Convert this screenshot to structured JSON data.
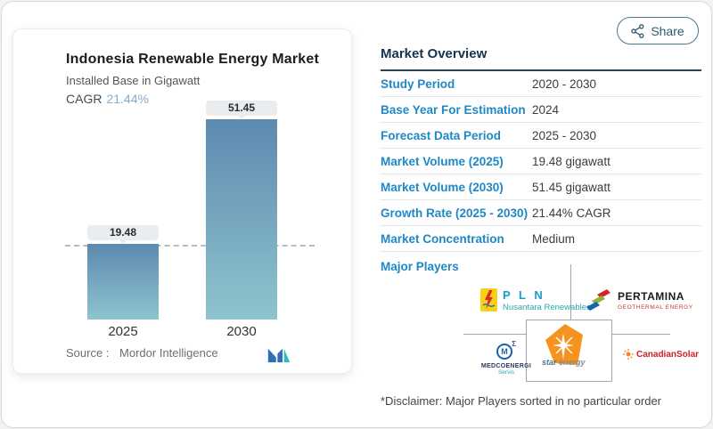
{
  "share": {
    "label": "Share"
  },
  "chart_card": {
    "title": "Indonesia Renewable Energy Market",
    "subtitle": "Installed Base in Gigawatt",
    "cagr_label": "CAGR",
    "cagr_value": "21.44%",
    "source_label": "Source :",
    "source_value": "Mordor Intelligence"
  },
  "chart_data": {
    "type": "bar",
    "title": "Indonesia Renewable Energy Market",
    "subtitle": "Installed Base in Gigawatt",
    "categories": [
      "2025",
      "2030"
    ],
    "values": [
      19.48,
      51.45
    ],
    "cagr": "21.44%",
    "ylabel": "Gigawatt",
    "ylim": [
      0,
      52
    ],
    "reference_line": 19.48,
    "bar_gradient_top": "#5c8ab0",
    "bar_gradient_bottom": "#8dc5ce",
    "grid": false,
    "legend": "none"
  },
  "overview": {
    "heading": "Market Overview",
    "rows": [
      {
        "label": "Study Period",
        "value": "2020 - 2030"
      },
      {
        "label": "Base Year For Estimation",
        "value": "2024"
      },
      {
        "label": "Forecast Data Period",
        "value": "2025 - 2030"
      },
      {
        "label": "Market Volume (2025)",
        "value": "19.48 gigawatt"
      },
      {
        "label": "Market Volume (2030)",
        "value": "51.45 gigawatt"
      },
      {
        "label": "Growth Rate (2025 - 2030)",
        "value": "21.44% CAGR"
      },
      {
        "label": "Market Concentration",
        "value": "Medium"
      }
    ],
    "major_players_label": "Major Players",
    "players": [
      {
        "name": "PLN Nusantara Renewables",
        "line1": "P L N",
        "line2": "Nusantara Renewables"
      },
      {
        "name": "Pertamina Geothermal Energy",
        "line1": "PERTAMINA",
        "line2": "GEOTHERMAL ENERGY"
      },
      {
        "name": "MedcoEnergi",
        "line1": "MEDCOENERGI",
        "line2": "Servis"
      },
      {
        "name": "Star Energy",
        "line1": "star",
        "line2": "energy"
      },
      {
        "name": "Canadian Solar",
        "line1": "CanadianSolar"
      }
    ],
    "disclaimer": "*Disclaimer: Major Players sorted in no particular order"
  },
  "colors": {
    "accent_blue": "#1f88c4",
    "heading_navy": "#15334d",
    "cagr_blue": "#83abcd",
    "pill_bg": "#e9edf0"
  }
}
